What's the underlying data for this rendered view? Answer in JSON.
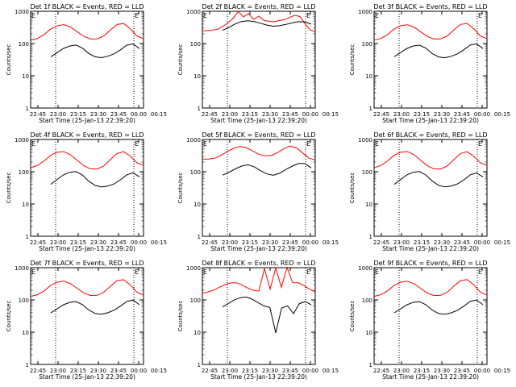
{
  "chart_data": [
    {
      "type": "line",
      "title": "Det 1f BLACK = Events, RED = LLD",
      "xlabel": "Start Time (25-Jan-13 22:39:20)",
      "ylabel": "Counts/sec",
      "yscale": "log",
      "ylim": [
        1,
        1000
      ],
      "xticks": [
        "22:45",
        "23:00",
        "23:15",
        "23:30",
        "23:45",
        "00:00",
        "00:15"
      ],
      "yticks": [
        "1",
        "10",
        "100",
        "1000"
      ],
      "marker_label": "E",
      "series": [
        {
          "name": "LLD",
          "color": "#ff0000",
          "values": [
            130,
            150,
            200,
            300,
            380,
            400,
            330,
            230,
            160,
            130,
            130,
            160,
            250,
            380,
            420,
            300,
            180,
            150
          ]
        },
        {
          "name": "Events",
          "color": "#000000",
          "values": [
            40,
            55,
            75,
            90,
            95,
            75,
            50,
            38,
            35,
            38,
            45,
            60,
            85,
            95,
            70
          ]
        }
      ]
    },
    {
      "type": "line",
      "title": "Det 2f BLACK = Events, RED = LLD",
      "xlabel": "Start Time (25-Jan-13 22:39:20)",
      "ylabel": "Counts/sec",
      "yscale": "log",
      "ylim": [
        1,
        1000
      ],
      "xticks": [
        "22:45",
        "23:00",
        "23:15",
        "23:30",
        "23:45",
        "00:00",
        "00:15"
      ],
      "yticks": [
        "1",
        "10",
        "100",
        "1000"
      ],
      "marker_label": "E",
      "series": [
        {
          "name": "LLD",
          "color": "#ff0000",
          "values": [
            240,
            240,
            245,
            260,
            320,
            420,
            600,
            1000,
            700,
            900,
            600,
            750,
            550,
            500,
            480,
            500,
            520,
            600,
            700,
            650,
            400,
            260,
            240
          ]
        },
        {
          "name": "Events",
          "color": "#000000",
          "values": [
            250,
            300,
            380,
            450,
            480,
            460,
            420,
            380,
            360,
            380,
            420,
            470,
            500,
            480,
            400
          ]
        }
      ]
    },
    {
      "type": "line",
      "title": "Det 3f BLACK = Events, RED = LLD",
      "xlabel": "Start Time (25-Jan-13 22:39:20)",
      "ylabel": "Counts/sec",
      "yscale": "log",
      "ylim": [
        1,
        1000
      ],
      "xticks": [
        "22:45",
        "23:00",
        "23:15",
        "23:30",
        "23:45",
        "00:00",
        "00:15"
      ],
      "yticks": [
        "1",
        "10",
        "100",
        "1000"
      ],
      "marker_label": "E",
      "series": [
        {
          "name": "LLD",
          "color": "#ff0000",
          "values": [
            130,
            150,
            200,
            300,
            380,
            400,
            330,
            230,
            160,
            130,
            130,
            160,
            250,
            380,
            420,
            300,
            180,
            150
          ]
        },
        {
          "name": "Events",
          "color": "#000000",
          "values": [
            40,
            55,
            75,
            90,
            95,
            75,
            50,
            38,
            35,
            38,
            45,
            60,
            85,
            95,
            70
          ]
        }
      ]
    },
    {
      "type": "line",
      "title": "Det 4f BLACK = Events, RED = LLD",
      "xlabel": "Start Time (25-Jan-13 22:39:20)",
      "ylabel": "Counts/sec",
      "yscale": "log",
      "ylim": [
        1,
        1000
      ],
      "xticks": [
        "22:45",
        "23:00",
        "23:15",
        "23:30",
        "23:45",
        "00:00",
        "00:15"
      ],
      "yticks": [
        "1",
        "10",
        "100",
        "1000"
      ],
      "marker_label": "E",
      "series": [
        {
          "name": "LLD",
          "color": "#ff0000",
          "values": [
            130,
            150,
            200,
            300,
            380,
            400,
            330,
            230,
            160,
            130,
            130,
            160,
            250,
            380,
            420,
            300,
            180,
            150
          ]
        },
        {
          "name": "Events",
          "color": "#000000",
          "values": [
            40,
            55,
            75,
            90,
            95,
            75,
            50,
            38,
            35,
            38,
            45,
            60,
            85,
            95,
            70
          ]
        }
      ]
    },
    {
      "type": "line",
      "title": "Det 5f BLACK = Events, RED = LLD",
      "xlabel": "Start Time (25-Jan-13 22:39:20)",
      "ylabel": "Counts/sec",
      "yscale": "log",
      "ylim": [
        1,
        1000
      ],
      "xticks": [
        "22:45",
        "23:00",
        "23:15",
        "23:30",
        "23:45",
        "00:00",
        "00:15"
      ],
      "yticks": [
        "1",
        "10",
        "100",
        "1000"
      ],
      "marker_label": "E",
      "series": [
        {
          "name": "LLD",
          "color": "#ff0000",
          "values": [
            250,
            260,
            280,
            350,
            450,
            560,
            620,
            560,
            430,
            330,
            290,
            300,
            370,
            500,
            620,
            560,
            400,
            280,
            250
          ]
        },
        {
          "name": "Events",
          "color": "#000000",
          "values": [
            80,
            100,
            130,
            160,
            175,
            150,
            110,
            85,
            75,
            85,
            110,
            140,
            170,
            175,
            130
          ]
        }
      ]
    },
    {
      "type": "line",
      "title": "Det 6f BLACK = Events, RED = LLD",
      "xlabel": "Start Time (25-Jan-13 22:39:20)",
      "ylabel": "Counts/sec",
      "yscale": "log",
      "ylim": [
        1,
        1000
      ],
      "xticks": [
        "22:45",
        "23:00",
        "23:15",
        "23:30",
        "23:45",
        "00:00",
        "00:15"
      ],
      "yticks": [
        "1",
        "10",
        "100",
        "1000"
      ],
      "marker_label": "E",
      "series": [
        {
          "name": "LLD",
          "color": "#ff0000",
          "values": [
            130,
            150,
            200,
            300,
            380,
            400,
            330,
            230,
            160,
            130,
            130,
            160,
            250,
            380,
            420,
            300,
            180,
            150
          ]
        },
        {
          "name": "Events",
          "color": "#000000",
          "values": [
            40,
            55,
            75,
            90,
            95,
            75,
            50,
            38,
            35,
            38,
            45,
            60,
            85,
            95,
            70
          ]
        }
      ]
    },
    {
      "type": "line",
      "title": "Det 7f BLACK = Events, RED = LLD",
      "xlabel": "Start Time (25-Jan-13 22:39:20)",
      "ylabel": "Counts/sec",
      "yscale": "log",
      "ylim": [
        1,
        1000
      ],
      "xticks": [
        "22:45",
        "23:00",
        "23:15",
        "23:30",
        "23:45",
        "00:00",
        "00:15"
      ],
      "yticks": [
        "1",
        "10",
        "100",
        "1000"
      ],
      "marker_label": "E",
      "series": [
        {
          "name": "LLD",
          "color": "#ff0000",
          "values": [
            130,
            150,
            200,
            300,
            380,
            400,
            330,
            230,
            160,
            130,
            130,
            160,
            250,
            380,
            420,
            300,
            180,
            150
          ]
        },
        {
          "name": "Events",
          "color": "#000000",
          "values": [
            40,
            55,
            75,
            90,
            95,
            75,
            50,
            38,
            35,
            38,
            45,
            60,
            85,
            95,
            70
          ]
        }
      ]
    },
    {
      "type": "line",
      "title": "Det 8f BLACK = Events, RED = LLD",
      "xlabel": "Start Time (25-Jan-13 22:39:20)",
      "ylabel": "Counts/sec",
      "yscale": "log",
      "ylim": [
        1,
        1000
      ],
      "xticks": [
        "22:45",
        "23:00",
        "23:15",
        "23:30",
        "23:45",
        "00:00",
        "00:15"
      ],
      "yticks": [
        "1",
        "10",
        "100",
        "1000"
      ],
      "marker_label": "E",
      "series": [
        {
          "name": "LLD",
          "color": "#ff0000",
          "values": [
            160,
            170,
            190,
            230,
            280,
            320,
            330,
            290,
            240,
            210,
            200,
            1000,
            230,
            1000,
            250,
            1000,
            330,
            320,
            260,
            200,
            170
          ]
        },
        {
          "name": "Events",
          "color": "#000000",
          "values": [
            60,
            75,
            95,
            110,
            115,
            100,
            80,
            65,
            60,
            10,
            60,
            70,
            40,
            80,
            90,
            70
          ]
        }
      ]
    },
    {
      "type": "line",
      "title": "Det 9f BLACK = Events, RED = LLD",
      "xlabel": "Start Time (25-Jan-13 22:39:20)",
      "ylabel": "Counts/sec",
      "yscale": "log",
      "ylim": [
        1,
        1000
      ],
      "xticks": [
        "22:45",
        "23:00",
        "23:15",
        "23:30",
        "23:45",
        "00:00",
        "00:15"
      ],
      "yticks": [
        "1",
        "10",
        "100",
        "1000"
      ],
      "marker_label": "E",
      "series": [
        {
          "name": "LLD",
          "color": "#ff0000",
          "values": [
            130,
            150,
            200,
            300,
            380,
            400,
            330,
            230,
            160,
            130,
            130,
            160,
            250,
            380,
            420,
            300,
            180,
            150
          ]
        },
        {
          "name": "Events",
          "color": "#000000",
          "values": [
            40,
            55,
            75,
            90,
            95,
            75,
            50,
            38,
            35,
            38,
            45,
            60,
            85,
            95,
            70
          ]
        }
      ]
    }
  ]
}
